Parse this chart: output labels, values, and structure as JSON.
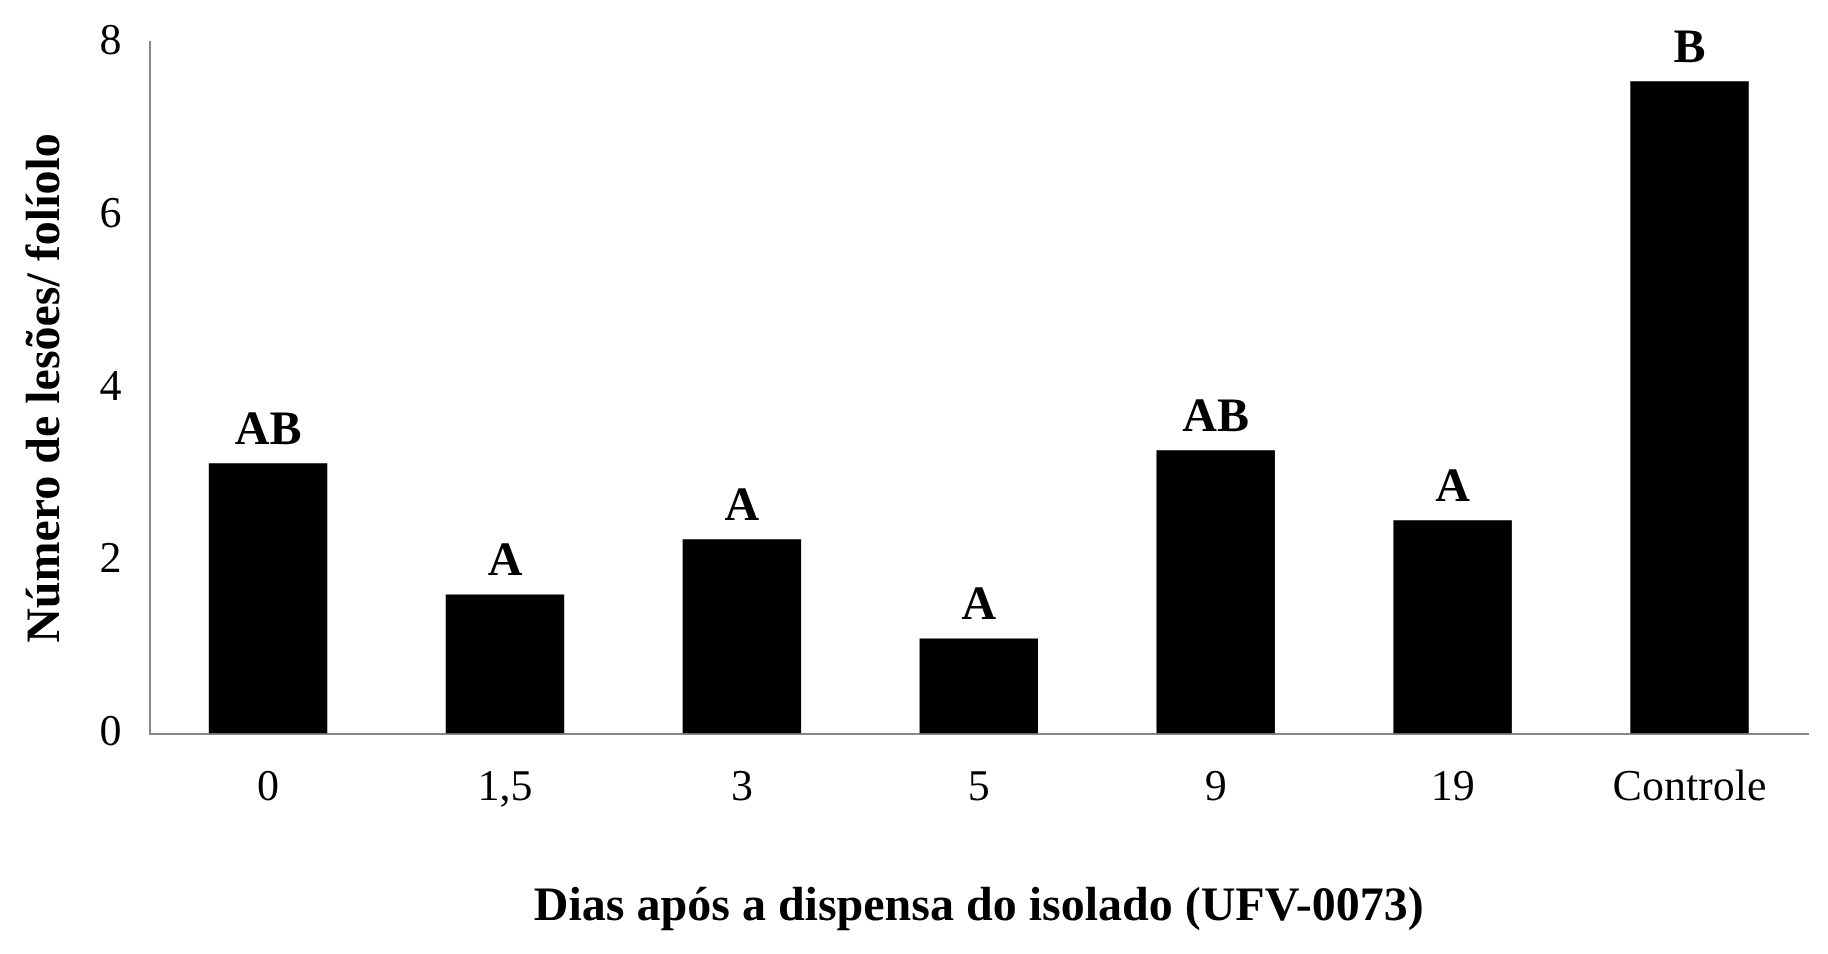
{
  "chart_data": {
    "type": "bar",
    "categories": [
      "0",
      "1,5",
      "3",
      "5",
      "9",
      "19",
      "Controle"
    ],
    "values": [
      3.13,
      1.61,
      2.25,
      1.1,
      3.28,
      2.47,
      7.55
    ],
    "color": "#000000",
    "xlabel": "Dias após a dispensa do isolado (UFV-0073)",
    "ylabel": "Número de lesões/ folíolo",
    "ylim": [
      0,
      8
    ],
    "yticks": [
      0,
      2,
      4,
      6,
      8
    ],
    "grid": false,
    "legend": false,
    "annotations": [
      {
        "text": "AB",
        "x": "0",
        "y": 3.13
      },
      {
        "text": "A",
        "x": "1,5",
        "y": 1.61
      },
      {
        "text": "A",
        "x": "3",
        "y": 2.25
      },
      {
        "text": "A",
        "x": "5",
        "y": 1.1
      },
      {
        "text": "AB",
        "x": "9",
        "y": 3.28
      },
      {
        "text": "A",
        "x": "19",
        "y": 2.47
      },
      {
        "text": "B",
        "x": "Controle",
        "y": 7.55
      }
    ]
  }
}
